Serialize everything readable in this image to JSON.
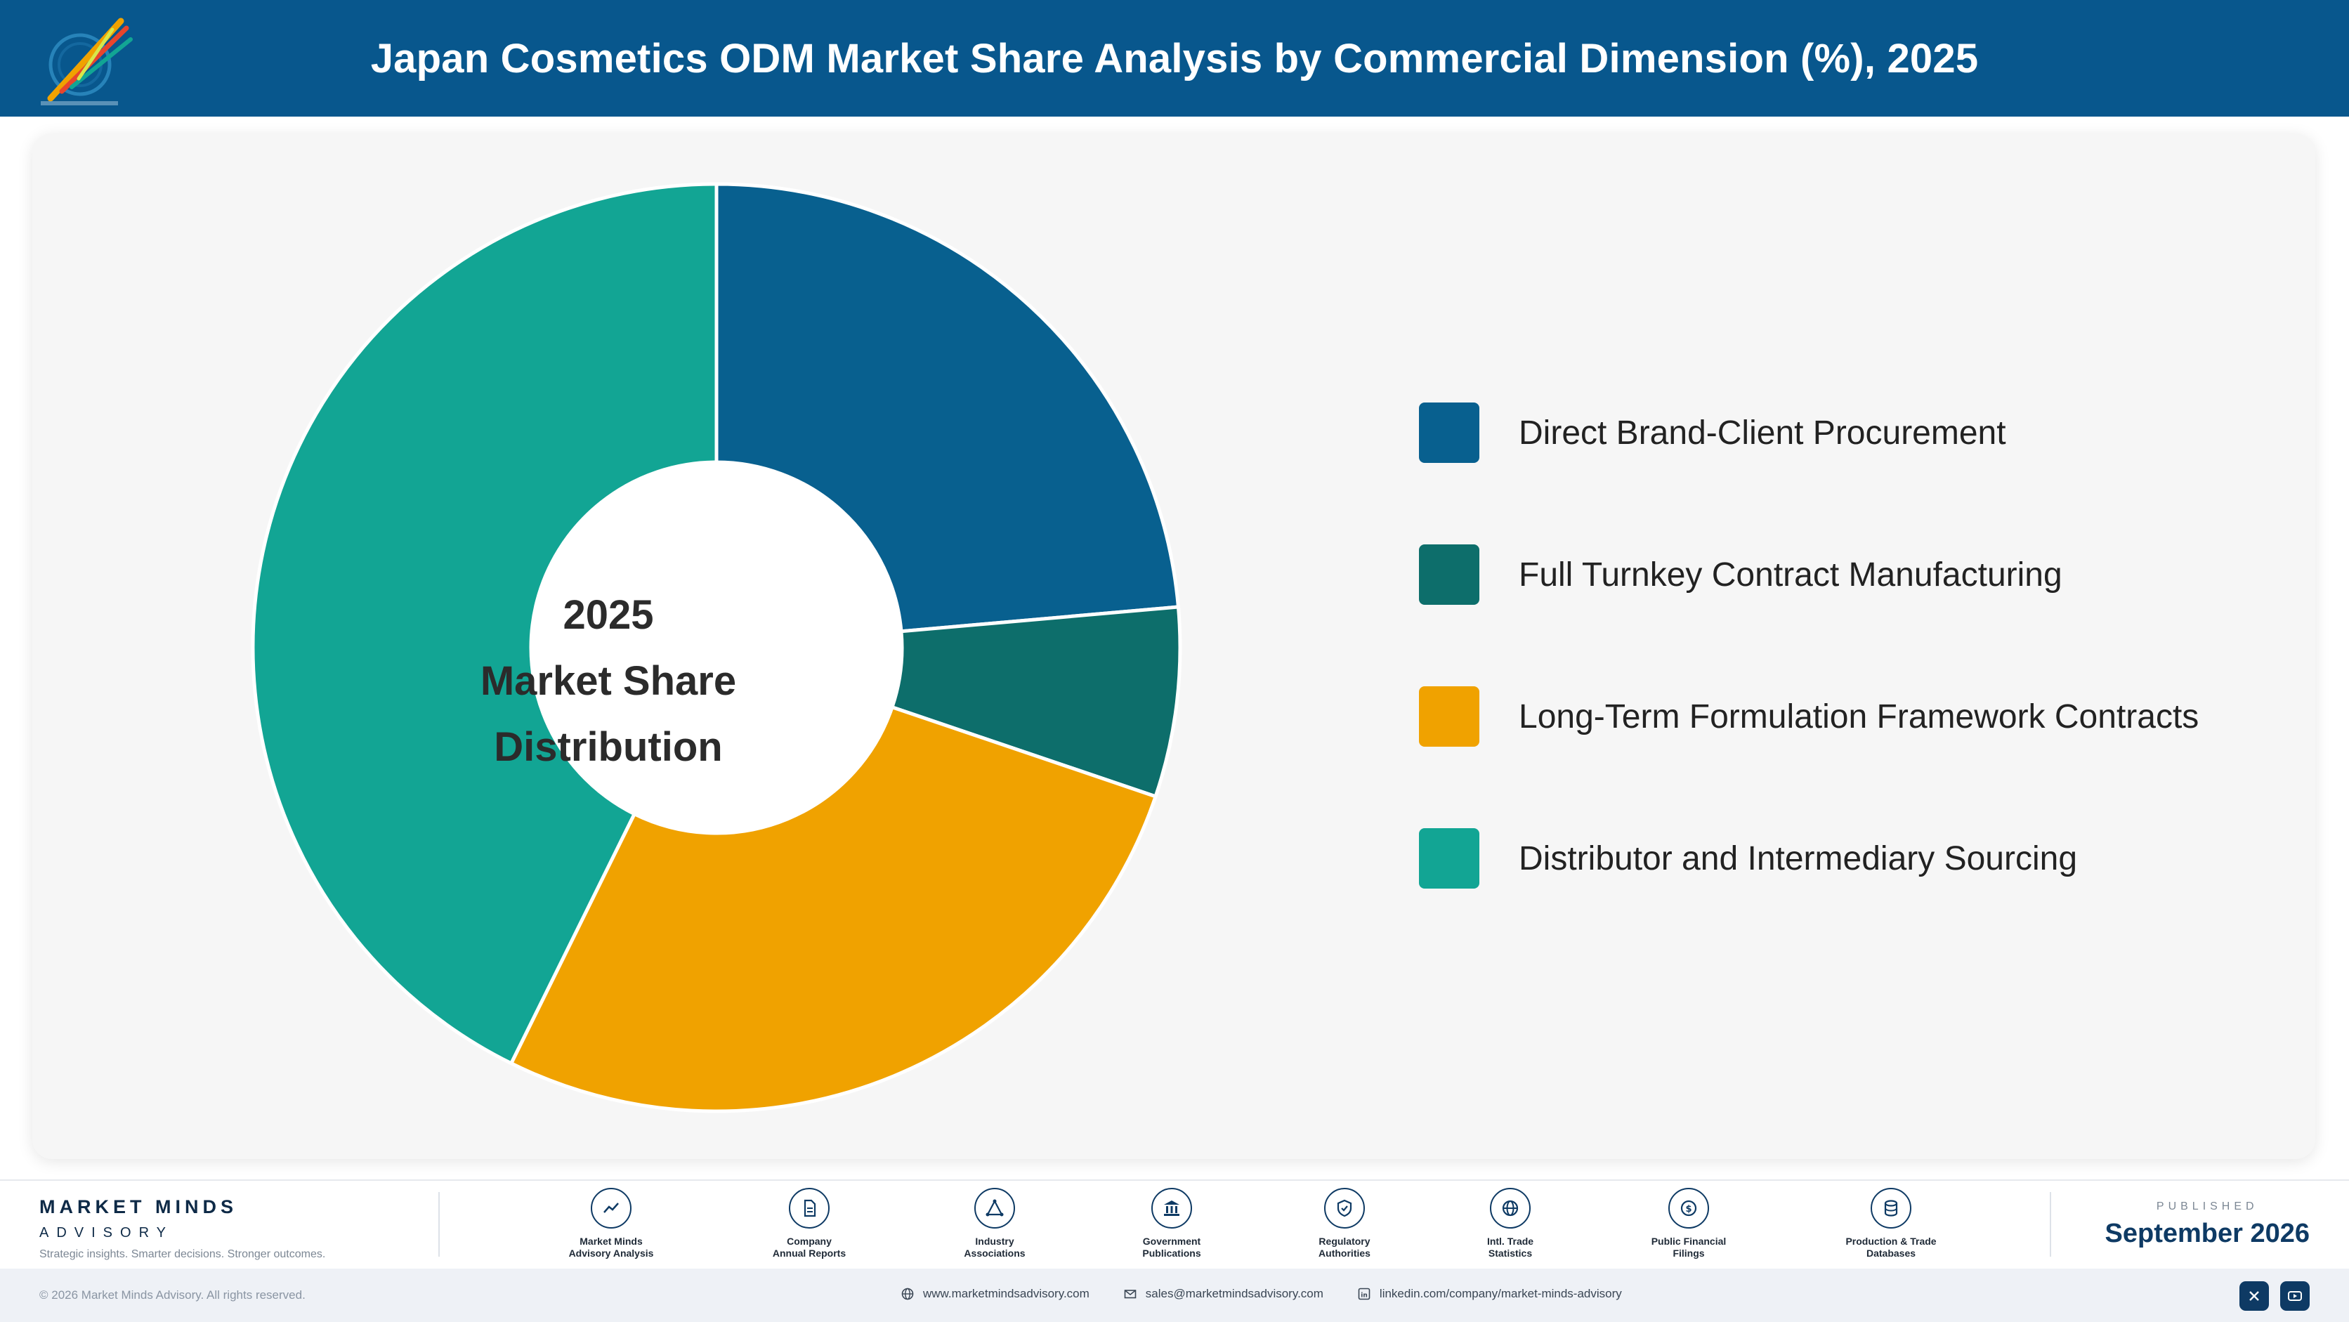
{
  "header": {
    "title": "Japan Cosmetics ODM Market Share Analysis by Commercial Dimension (%), 2025",
    "background": "#08578d"
  },
  "chart_data": {
    "type": "pie",
    "variant": "donut",
    "title": "Japan Cosmetics ODM Market Share Analysis by Commercial Dimension (%), 2025",
    "center_label": [
      "2025",
      "Market Share",
      "Distribution"
    ],
    "categories": [
      "Direct Brand-Client Procurement",
      "Full Turnkey Contract Manufacturing",
      "Long-Term Formulation Framework Contracts",
      "Distributor and Intermediary Sourcing"
    ],
    "values": [
      23.6,
      6.6,
      27.1,
      42.7
    ],
    "colors": [
      "#08608f",
      "#0d6e6b",
      "#f0a200",
      "#12a594"
    ],
    "legend_position": "right",
    "start_angle_deg": 0,
    "direction": "clockwise"
  },
  "footer": {
    "brand_name": "MARKET MINDS",
    "brand_sub": "ADVISORY",
    "tagline": "Strategic insights. Smarter decisions. Stronger outcomes.",
    "sources": [
      {
        "label": "Market Minds\nAdvisory Analysis",
        "icon": "trend-line-icon"
      },
      {
        "label": "Company\nAnnual Reports",
        "icon": "document-icon"
      },
      {
        "label": "Industry\nAssociations",
        "icon": "network-icon"
      },
      {
        "label": "Government\nPublications",
        "icon": "government-building-icon"
      },
      {
        "label": "Regulatory\nAuthorities",
        "icon": "shield-check-icon"
      },
      {
        "label": "Intl. Trade\nStatistics",
        "icon": "globe-icon"
      },
      {
        "label": "Public Financial\nFilings",
        "icon": "coin-icon"
      },
      {
        "label": "Production & Trade\nDatabases",
        "icon": "database-icon"
      }
    ],
    "published_label": "PUBLISHED",
    "published_date": "September 2026",
    "copyright": "© 2026 Market Minds Advisory. All rights reserved.",
    "website": "www.marketmindsadvisory.com",
    "email": "sales@marketmindsadvisory.com",
    "linkedin": "linkedin.com/company/market-minds-advisory"
  }
}
